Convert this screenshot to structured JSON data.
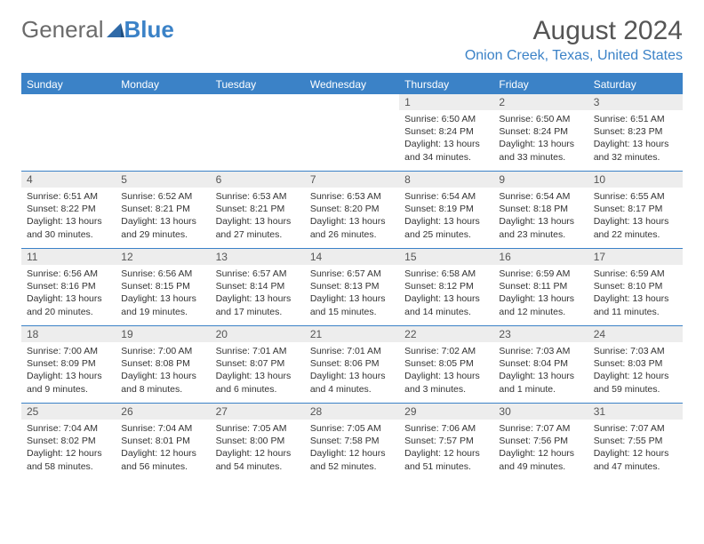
{
  "brand": {
    "part1": "General",
    "part2": "Blue"
  },
  "title": "August 2024",
  "location": "Onion Creek, Texas, United States",
  "colors": {
    "accent": "#3b82c7",
    "header_text": "#ffffff",
    "daynum_bg": "#ededed",
    "daynum_text": "#555555",
    "body_text": "#333333",
    "background": "#ffffff"
  },
  "weekdays": [
    "Sunday",
    "Monday",
    "Tuesday",
    "Wednesday",
    "Thursday",
    "Friday",
    "Saturday"
  ],
  "weeks": [
    [
      null,
      null,
      null,
      null,
      {
        "n": "1",
        "sunrise": "Sunrise: 6:50 AM",
        "sunset": "Sunset: 8:24 PM",
        "daylight": "Daylight: 13 hours and 34 minutes."
      },
      {
        "n": "2",
        "sunrise": "Sunrise: 6:50 AM",
        "sunset": "Sunset: 8:24 PM",
        "daylight": "Daylight: 13 hours and 33 minutes."
      },
      {
        "n": "3",
        "sunrise": "Sunrise: 6:51 AM",
        "sunset": "Sunset: 8:23 PM",
        "daylight": "Daylight: 13 hours and 32 minutes."
      }
    ],
    [
      {
        "n": "4",
        "sunrise": "Sunrise: 6:51 AM",
        "sunset": "Sunset: 8:22 PM",
        "daylight": "Daylight: 13 hours and 30 minutes."
      },
      {
        "n": "5",
        "sunrise": "Sunrise: 6:52 AM",
        "sunset": "Sunset: 8:21 PM",
        "daylight": "Daylight: 13 hours and 29 minutes."
      },
      {
        "n": "6",
        "sunrise": "Sunrise: 6:53 AM",
        "sunset": "Sunset: 8:21 PM",
        "daylight": "Daylight: 13 hours and 27 minutes."
      },
      {
        "n": "7",
        "sunrise": "Sunrise: 6:53 AM",
        "sunset": "Sunset: 8:20 PM",
        "daylight": "Daylight: 13 hours and 26 minutes."
      },
      {
        "n": "8",
        "sunrise": "Sunrise: 6:54 AM",
        "sunset": "Sunset: 8:19 PM",
        "daylight": "Daylight: 13 hours and 25 minutes."
      },
      {
        "n": "9",
        "sunrise": "Sunrise: 6:54 AM",
        "sunset": "Sunset: 8:18 PM",
        "daylight": "Daylight: 13 hours and 23 minutes."
      },
      {
        "n": "10",
        "sunrise": "Sunrise: 6:55 AM",
        "sunset": "Sunset: 8:17 PM",
        "daylight": "Daylight: 13 hours and 22 minutes."
      }
    ],
    [
      {
        "n": "11",
        "sunrise": "Sunrise: 6:56 AM",
        "sunset": "Sunset: 8:16 PM",
        "daylight": "Daylight: 13 hours and 20 minutes."
      },
      {
        "n": "12",
        "sunrise": "Sunrise: 6:56 AM",
        "sunset": "Sunset: 8:15 PM",
        "daylight": "Daylight: 13 hours and 19 minutes."
      },
      {
        "n": "13",
        "sunrise": "Sunrise: 6:57 AM",
        "sunset": "Sunset: 8:14 PM",
        "daylight": "Daylight: 13 hours and 17 minutes."
      },
      {
        "n": "14",
        "sunrise": "Sunrise: 6:57 AM",
        "sunset": "Sunset: 8:13 PM",
        "daylight": "Daylight: 13 hours and 15 minutes."
      },
      {
        "n": "15",
        "sunrise": "Sunrise: 6:58 AM",
        "sunset": "Sunset: 8:12 PM",
        "daylight": "Daylight: 13 hours and 14 minutes."
      },
      {
        "n": "16",
        "sunrise": "Sunrise: 6:59 AM",
        "sunset": "Sunset: 8:11 PM",
        "daylight": "Daylight: 13 hours and 12 minutes."
      },
      {
        "n": "17",
        "sunrise": "Sunrise: 6:59 AM",
        "sunset": "Sunset: 8:10 PM",
        "daylight": "Daylight: 13 hours and 11 minutes."
      }
    ],
    [
      {
        "n": "18",
        "sunrise": "Sunrise: 7:00 AM",
        "sunset": "Sunset: 8:09 PM",
        "daylight": "Daylight: 13 hours and 9 minutes."
      },
      {
        "n": "19",
        "sunrise": "Sunrise: 7:00 AM",
        "sunset": "Sunset: 8:08 PM",
        "daylight": "Daylight: 13 hours and 8 minutes."
      },
      {
        "n": "20",
        "sunrise": "Sunrise: 7:01 AM",
        "sunset": "Sunset: 8:07 PM",
        "daylight": "Daylight: 13 hours and 6 minutes."
      },
      {
        "n": "21",
        "sunrise": "Sunrise: 7:01 AM",
        "sunset": "Sunset: 8:06 PM",
        "daylight": "Daylight: 13 hours and 4 minutes."
      },
      {
        "n": "22",
        "sunrise": "Sunrise: 7:02 AM",
        "sunset": "Sunset: 8:05 PM",
        "daylight": "Daylight: 13 hours and 3 minutes."
      },
      {
        "n": "23",
        "sunrise": "Sunrise: 7:03 AM",
        "sunset": "Sunset: 8:04 PM",
        "daylight": "Daylight: 13 hours and 1 minute."
      },
      {
        "n": "24",
        "sunrise": "Sunrise: 7:03 AM",
        "sunset": "Sunset: 8:03 PM",
        "daylight": "Daylight: 12 hours and 59 minutes."
      }
    ],
    [
      {
        "n": "25",
        "sunrise": "Sunrise: 7:04 AM",
        "sunset": "Sunset: 8:02 PM",
        "daylight": "Daylight: 12 hours and 58 minutes."
      },
      {
        "n": "26",
        "sunrise": "Sunrise: 7:04 AM",
        "sunset": "Sunset: 8:01 PM",
        "daylight": "Daylight: 12 hours and 56 minutes."
      },
      {
        "n": "27",
        "sunrise": "Sunrise: 7:05 AM",
        "sunset": "Sunset: 8:00 PM",
        "daylight": "Daylight: 12 hours and 54 minutes."
      },
      {
        "n": "28",
        "sunrise": "Sunrise: 7:05 AM",
        "sunset": "Sunset: 7:58 PM",
        "daylight": "Daylight: 12 hours and 52 minutes."
      },
      {
        "n": "29",
        "sunrise": "Sunrise: 7:06 AM",
        "sunset": "Sunset: 7:57 PM",
        "daylight": "Daylight: 12 hours and 51 minutes."
      },
      {
        "n": "30",
        "sunrise": "Sunrise: 7:07 AM",
        "sunset": "Sunset: 7:56 PM",
        "daylight": "Daylight: 12 hours and 49 minutes."
      },
      {
        "n": "31",
        "sunrise": "Sunrise: 7:07 AM",
        "sunset": "Sunset: 7:55 PM",
        "daylight": "Daylight: 12 hours and 47 minutes."
      }
    ]
  ]
}
